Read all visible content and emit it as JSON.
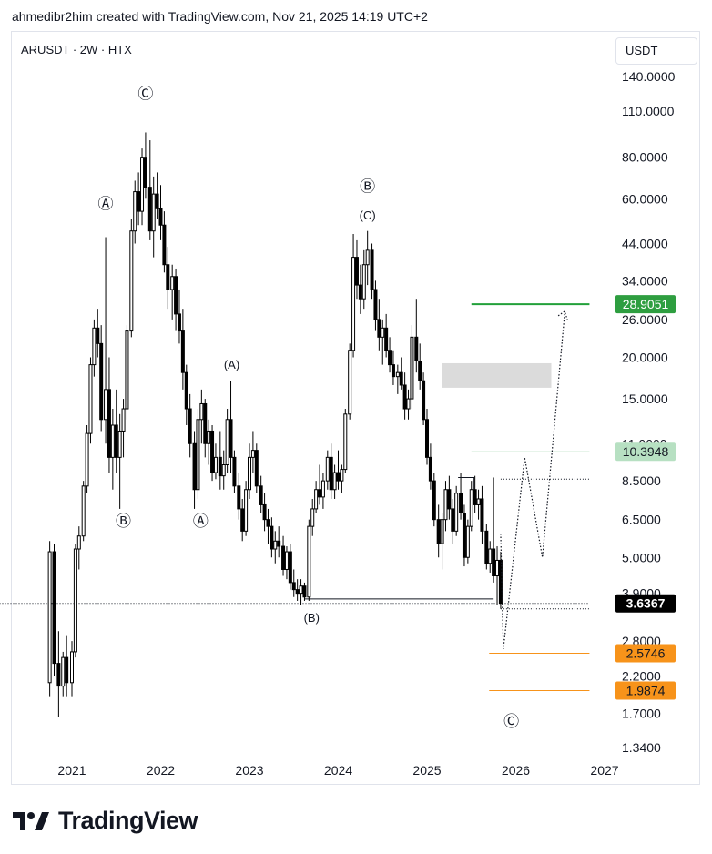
{
  "header": {
    "text": "ahmedibr2him created with TradingView.com, Nov 21, 2025 14:19 UTC+2"
  },
  "symbol": {
    "text": "ARUSDT · 2W · HTX"
  },
  "currency": {
    "label": "USDT"
  },
  "footer": {
    "brand": "TradingView"
  },
  "colors": {
    "candle": "#000000",
    "green_line": "#22a03a",
    "green_label": "#2e9e40",
    "light_green_label": "#b7e0c2",
    "orange": "#f7931a",
    "gray_box": "#d9d9d9",
    "price_label": "#000000"
  },
  "chart_data": {
    "type": "candlestick",
    "title": "",
    "scale": "log",
    "ylim": [
      1.22,
      170
    ],
    "x_ticks": [
      "2021",
      "2022",
      "2023",
      "2024",
      "2025",
      "2026",
      "2027"
    ],
    "y_ticks": [
      "140.0000",
      "110.0000",
      "80.0000",
      "60.0000",
      "44.0000",
      "34.0000",
      "26.0000",
      "20.0000",
      "15.0000",
      "11.0000",
      "8.5000",
      "6.5000",
      "5.0000",
      "3.9000",
      "2.8000",
      "2.2000",
      "1.7000",
      "1.3400"
    ],
    "y_tick_values": [
      140,
      110,
      80,
      60,
      44,
      34,
      26,
      20,
      15,
      11,
      8.5,
      6.5,
      5.0,
      3.9,
      2.8,
      2.2,
      1.7,
      1.34
    ],
    "price_labels": [
      {
        "text": "28.9051",
        "value": 28.9051,
        "style": "green"
      },
      {
        "text": "10.3948",
        "value": 10.3948,
        "style": "light-green"
      },
      {
        "text": "3.6367",
        "value": 3.6367,
        "style": "black"
      },
      {
        "text": "2.5746",
        "value": 2.5746,
        "style": "orange"
      },
      {
        "text": "1.9874",
        "value": 1.9874,
        "style": "orange"
      }
    ],
    "wave_labels": [
      {
        "text": "Ⓒ",
        "date": 2021.83,
        "value": 120
      },
      {
        "text": "Ⓐ",
        "date": 2021.38,
        "value": 56
      },
      {
        "text": "Ⓑ",
        "date": 2021.58,
        "value": 6.2
      },
      {
        "text": "(A)",
        "date": 2022.8,
        "value": 18.5
      },
      {
        "text": "Ⓐ",
        "date": 2022.45,
        "value": 6.2
      },
      {
        "text": "Ⓑ",
        "date": 2024.33,
        "value": 63
      },
      {
        "text": "(C)",
        "date": 2024.33,
        "value": 52
      },
      {
        "text": "(B)",
        "date": 2023.7,
        "value": 3.2
      },
      {
        "text": "Ⓒ",
        "date": 2025.95,
        "value": 1.55
      }
    ],
    "candles": [
      [
        2020.75,
        2.1,
        5.6,
        1.9,
        5.2
      ],
      [
        2020.8,
        5.2,
        5.5,
        2.2,
        2.4
      ],
      [
        2020.85,
        2.4,
        3.0,
        1.65,
        2.05
      ],
      [
        2020.9,
        2.05,
        2.6,
        1.9,
        2.5
      ],
      [
        2020.94,
        2.5,
        2.9,
        1.9,
        2.1
      ],
      [
        2021.0,
        2.1,
        2.8,
        1.9,
        2.6
      ],
      [
        2021.04,
        2.6,
        5.5,
        2.5,
        5.3
      ],
      [
        2021.08,
        5.3,
        6.2,
        4.6,
        5.8
      ],
      [
        2021.13,
        5.8,
        8.5,
        5.6,
        8.2
      ],
      [
        2021.17,
        8.2,
        12.5,
        7.8,
        11.8
      ],
      [
        2021.21,
        11.8,
        20,
        11.0,
        19.0
      ],
      [
        2021.25,
        19.0,
        26,
        17.5,
        24.5
      ],
      [
        2021.29,
        24.5,
        28,
        20,
        22.0
      ],
      [
        2021.33,
        22.0,
        25,
        12.0,
        13.0
      ],
      [
        2021.38,
        13.0,
        46,
        11.0,
        16.0
      ],
      [
        2021.42,
        16.0,
        20.0,
        9.0,
        10.0
      ],
      [
        2021.46,
        10.0,
        14.0,
        8.0,
        12.5
      ],
      [
        2021.5,
        12.5,
        16.0,
        9.0,
        10.0
      ],
      [
        2021.54,
        10.0,
        13.5,
        7.0,
        12.0
      ],
      [
        2021.58,
        12.0,
        15.0,
        10.0,
        14.0
      ],
      [
        2021.62,
        14.0,
        25.0,
        13.0,
        24.0
      ],
      [
        2021.67,
        24.0,
        52,
        23.0,
        48.0
      ],
      [
        2021.71,
        48.0,
        68,
        44.0,
        63.0
      ],
      [
        2021.75,
        63.0,
        72,
        50.0,
        55.0
      ],
      [
        2021.79,
        55.0,
        85,
        50.0,
        80.0
      ],
      [
        2021.83,
        80.0,
        95,
        60.0,
        65.0
      ],
      [
        2021.88,
        65.0,
        90,
        45.0,
        48.0
      ],
      [
        2021.92,
        48.0,
        70,
        40.0,
        62.0
      ],
      [
        2021.96,
        62.0,
        72,
        52.0,
        56.0
      ],
      [
        2022.0,
        56.0,
        66,
        45.0,
        50.0
      ],
      [
        2022.04,
        50.0,
        55,
        36.0,
        38.0
      ],
      [
        2022.08,
        38.0,
        43,
        28.0,
        32.0
      ],
      [
        2022.13,
        32.0,
        38,
        26.0,
        35.0
      ],
      [
        2022.17,
        35.0,
        37,
        24.0,
        27.0
      ],
      [
        2022.21,
        27.0,
        32,
        22.0,
        24.0
      ],
      [
        2022.25,
        24.0,
        28,
        16.0,
        18.0
      ],
      [
        2022.29,
        18.0,
        19.0,
        12.5,
        14.0
      ],
      [
        2022.33,
        14.0,
        15.5,
        10.0,
        11.0
      ],
      [
        2022.38,
        11.0,
        12.0,
        7.0,
        8.0
      ],
      [
        2022.42,
        8.0,
        14.0,
        7.5,
        13.0
      ],
      [
        2022.46,
        13.0,
        16.0,
        11.0,
        14.5
      ],
      [
        2022.5,
        14.5,
        15.0,
        10.0,
        11.0
      ],
      [
        2022.54,
        11.0,
        13.0,
        9.5,
        12.0
      ],
      [
        2022.58,
        12.0,
        12.5,
        8.5,
        9.0
      ],
      [
        2022.62,
        9.0,
        11.0,
        8.6,
        10.0
      ],
      [
        2022.67,
        10.0,
        12.0,
        8.0,
        8.8
      ],
      [
        2022.71,
        8.8,
        10.5,
        8.0,
        9.5
      ],
      [
        2022.75,
        9.5,
        14.0,
        9.0,
        13.0
      ],
      [
        2022.79,
        13.0,
        17.0,
        9.0,
        10.0
      ],
      [
        2022.83,
        10.0,
        10.5,
        7.8,
        8.2
      ],
      [
        2022.88,
        8.2,
        9.0,
        6.5,
        7.0
      ],
      [
        2022.92,
        7.0,
        7.5,
        5.6,
        6.0
      ],
      [
        2022.96,
        6.0,
        8.5,
        5.8,
        8.0
      ],
      [
        2023.0,
        8.0,
        11.0,
        7.5,
        10.0
      ],
      [
        2023.04,
        10.0,
        12.0,
        9.0,
        10.5
      ],
      [
        2023.08,
        10.5,
        11.0,
        7.8,
        8.2
      ],
      [
        2023.13,
        8.2,
        8.8,
        6.8,
        7.2
      ],
      [
        2023.17,
        7.2,
        7.8,
        6.0,
        6.5
      ],
      [
        2023.21,
        6.5,
        7.0,
        5.5,
        6.2
      ],
      [
        2023.25,
        6.2,
        6.6,
        5.0,
        5.3
      ],
      [
        2023.29,
        5.3,
        6.0,
        4.8,
        5.6
      ],
      [
        2023.33,
        5.6,
        6.2,
        5.0,
        5.4
      ],
      [
        2023.38,
        5.4,
        5.8,
        4.4,
        4.6
      ],
      [
        2023.42,
        4.6,
        5.4,
        4.3,
        5.2
      ],
      [
        2023.46,
        5.2,
        5.5,
        4.0,
        4.2
      ],
      [
        2023.5,
        4.2,
        4.6,
        3.8,
        4.0
      ],
      [
        2023.54,
        4.0,
        4.3,
        3.7,
        3.9
      ],
      [
        2023.58,
        3.9,
        4.3,
        3.6,
        4.1
      ],
      [
        2023.62,
        4.1,
        4.2,
        3.7,
        3.8
      ],
      [
        2023.67,
        3.8,
        6.5,
        3.7,
        6.2
      ],
      [
        2023.71,
        6.2,
        7.5,
        5.8,
        7.0
      ],
      [
        2023.75,
        7.0,
        8.5,
        6.8,
        8.0
      ],
      [
        2023.79,
        8.0,
        9.5,
        7.2,
        7.6
      ],
      [
        2023.83,
        7.6,
        9.0,
        7.0,
        8.5
      ],
      [
        2023.88,
        8.5,
        10.5,
        8.0,
        10.0
      ],
      [
        2023.92,
        10.0,
        11.0,
        7.5,
        8.0
      ],
      [
        2023.96,
        8.0,
        9.5,
        7.5,
        9.0
      ],
      [
        2024.0,
        9.0,
        10.5,
        8.0,
        8.5
      ],
      [
        2024.04,
        8.5,
        9.5,
        7.8,
        9.2
      ],
      [
        2024.08,
        9.2,
        14.0,
        9.0,
        13.5
      ],
      [
        2024.13,
        13.5,
        22.0,
        13.0,
        21.0
      ],
      [
        2024.17,
        21.0,
        47,
        20.0,
        40.0
      ],
      [
        2024.21,
        40.0,
        45,
        30.0,
        33.0
      ],
      [
        2024.25,
        33.0,
        38,
        27.0,
        30.0
      ],
      [
        2024.29,
        30.0,
        42,
        28.0,
        38.0
      ],
      [
        2024.33,
        38.0,
        48,
        33.0,
        42.0
      ],
      [
        2024.38,
        42.0,
        44,
        30.0,
        32.0
      ],
      [
        2024.42,
        32.0,
        34,
        24.0,
        26.0
      ],
      [
        2024.46,
        26.0,
        30,
        21.0,
        23.0
      ],
      [
        2024.5,
        23.0,
        26,
        19.0,
        24.5
      ],
      [
        2024.54,
        24.5,
        27,
        20.0,
        21.0
      ],
      [
        2024.58,
        21.0,
        23,
        18.0,
        19.0
      ],
      [
        2024.62,
        19.0,
        21,
        16.5,
        17.5
      ],
      [
        2024.67,
        17.5,
        19,
        15.5,
        18.0
      ],
      [
        2024.71,
        18.0,
        20,
        16.0,
        16.5
      ],
      [
        2024.75,
        16.5,
        18,
        13.0,
        14.0
      ],
      [
        2024.79,
        14.0,
        16,
        13.0,
        15.0
      ],
      [
        2024.83,
        15.0,
        25,
        14.0,
        23.0
      ],
      [
        2024.88,
        23.0,
        30,
        18.0,
        19.5
      ],
      [
        2024.92,
        19.5,
        22,
        16.0,
        17.0
      ],
      [
        2024.96,
        17.0,
        18,
        12.5,
        13.0
      ],
      [
        2025.0,
        13.0,
        14.0,
        9.5,
        10.0
      ],
      [
        2025.04,
        10.0,
        11.0,
        8.0,
        8.5
      ],
      [
        2025.08,
        8.5,
        9.0,
        6.2,
        6.5
      ],
      [
        2025.13,
        6.5,
        7.2,
        5.0,
        5.5
      ],
      [
        2025.17,
        5.5,
        6.8,
        4.6,
        6.5
      ],
      [
        2025.21,
        6.5,
        8.5,
        6.0,
        8.0
      ],
      [
        2025.25,
        8.0,
        8.8,
        6.5,
        7.0
      ],
      [
        2025.29,
        7.0,
        7.5,
        5.5,
        6.0
      ],
      [
        2025.33,
        6.0,
        8.2,
        5.8,
        7.8
      ],
      [
        2025.38,
        7.8,
        9.0,
        6.5,
        6.8
      ],
      [
        2025.42,
        6.8,
        7.2,
        4.7,
        5.0
      ],
      [
        2025.46,
        5.0,
        6.5,
        4.8,
        6.2
      ],
      [
        2025.5,
        6.2,
        8.5,
        6.0,
        8.0
      ],
      [
        2025.54,
        8.0,
        8.8,
        6.8,
        7.2
      ],
      [
        2025.58,
        7.2,
        8.0,
        6.5,
        7.5
      ],
      [
        2025.62,
        7.5,
        8.2,
        5.5,
        6.0
      ],
      [
        2025.67,
        6.0,
        6.3,
        4.6,
        4.8
      ],
      [
        2025.71,
        4.8,
        5.6,
        4.5,
        5.3
      ],
      [
        2025.75,
        5.3,
        8.7,
        4.2,
        4.4
      ],
      [
        2025.79,
        4.4,
        5.4,
        3.6,
        4.9
      ],
      [
        2025.83,
        4.9,
        5.2,
        3.5,
        3.64
      ]
    ],
    "horizontal_lines": [
      {
        "value": 28.9051,
        "from": 2025.5,
        "to": 2026.83,
        "style": "solid-green"
      },
      {
        "value": 10.3948,
        "from": 2025.5,
        "to": 2026.83,
        "style": "thin-green"
      },
      {
        "value": 3.6367,
        "from": 2020.0,
        "to": 2026.83,
        "style": "dotted-black"
      },
      {
        "value": 3.75,
        "from": 2023.62,
        "to": 2025.75,
        "style": "solid-black"
      },
      {
        "value": 2.5746,
        "from": 2025.7,
        "to": 2026.83,
        "style": "orange"
      },
      {
        "value": 1.9874,
        "from": 2025.7,
        "to": 2026.83,
        "style": "orange"
      },
      {
        "value": 8.6,
        "from": 2025.83,
        "to": 2026.83,
        "style": "dotted-black"
      },
      {
        "value": 3.5,
        "from": 2025.83,
        "to": 2026.83,
        "style": "dotted-black"
      }
    ],
    "zone": {
      "from": 2025.0,
      "to": 2026.4,
      "low": 16.2,
      "high": 19.2
    },
    "projection": [
      [
        2025.83,
        5.9
      ],
      [
        2025.86,
        2.65
      ],
      [
        2026.1,
        10.0
      ],
      [
        2026.3,
        5.0
      ],
      [
        2026.55,
        27.0
      ]
    ]
  }
}
